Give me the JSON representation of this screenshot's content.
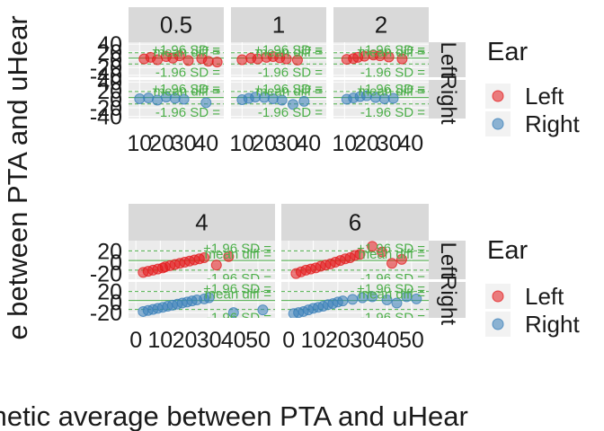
{
  "chart_data": [
    {
      "type": "scatter",
      "title": "",
      "facet_rows": [
        "Left",
        "Right"
      ],
      "facet_row_labels": [
        "Left",
        "Right"
      ],
      "facet_cols": [
        "0.5",
        "1",
        "2"
      ],
      "xlim": [
        5,
        48
      ],
      "xticks": [
        10,
        20,
        30,
        40
      ],
      "xtick_labels": [
        "10",
        "20",
        "30",
        "40"
      ],
      "ylim": [
        -45,
        45
      ],
      "yticks": [
        40,
        20,
        0,
        -20,
        -40
      ],
      "ytick_labels": [
        "40",
        "20",
        "0",
        "-20",
        "-40"
      ],
      "ref_lines": {
        "mean": 4,
        "upper": 18,
        "lower": -11
      },
      "annotations": {
        "mean": "mean diff =",
        "upper": "+1.96 SD =",
        "lower": "-1.96 SD ="
      },
      "series": [
        {
          "name": "Left",
          "panels": [
            [
              [
                12,
                2
              ],
              [
                15,
                6
              ],
              [
                18,
                0
              ],
              [
                22,
                8
              ],
              [
                25,
                4
              ],
              [
                28,
                10
              ],
              [
                32,
                -2
              ],
              [
                38,
                3
              ],
              [
                41,
                -4
              ],
              [
                45,
                -6
              ]
            ],
            [
              [
                10,
                0
              ],
              [
                14,
                4
              ],
              [
                17,
                2
              ],
              [
                21,
                6
              ],
              [
                24,
                8
              ],
              [
                27,
                5
              ],
              [
                30,
                2
              ],
              [
                35,
                -1
              ]
            ],
            [
              [
                11,
                1
              ],
              [
                14,
                3
              ],
              [
                16,
                6
              ],
              [
                19,
                9
              ],
              [
                23,
                12
              ],
              [
                26,
                10
              ],
              [
                30,
                7
              ],
              [
                36,
                2
              ]
            ]
          ]
        },
        {
          "name": "Right",
          "panels": [
            [
              [
                10,
                1
              ],
              [
                14,
                3
              ],
              [
                18,
                -2
              ],
              [
                22,
                5
              ],
              [
                26,
                2
              ],
              [
                30,
                0
              ],
              [
                40,
                -8
              ]
            ],
            [
              [
                10,
                -1
              ],
              [
                13,
                2
              ],
              [
                16,
                5
              ],
              [
                20,
                4
              ],
              [
                24,
                1
              ],
              [
                28,
                -2
              ],
              [
                33,
                -12
              ],
              [
                38,
                -5
              ]
            ],
            [
              [
                11,
                0
              ],
              [
                14,
                3
              ],
              [
                17,
                6
              ],
              [
                20,
                8
              ],
              [
                24,
                4
              ],
              [
                28,
                1
              ],
              [
                32,
                2
              ]
            ]
          ]
        }
      ]
    },
    {
      "type": "scatter",
      "title": "",
      "facet_rows": [
        "Left",
        "Right"
      ],
      "facet_row_labels": [
        "Left",
        "Right"
      ],
      "facet_cols": [
        "4",
        "6"
      ],
      "xlim": [
        -3,
        57
      ],
      "xticks": [
        0,
        10,
        20,
        30,
        40,
        50
      ],
      "xtick_labels": [
        "0",
        "10",
        "20",
        "30",
        "40",
        "50"
      ],
      "ylim": [
        -30,
        38
      ],
      "yticks": [
        20,
        0,
        -20
      ],
      "ytick_labels": [
        "20",
        "0",
        "-20"
      ],
      "ref_lines": {
        "mean": 3,
        "upper": 20,
        "lower": -14
      },
      "annotations": {
        "mean": "mean diff =",
        "upper": "+1.96 SD =",
        "lower": "-1.96 SD ="
      },
      "series": [
        {
          "name": "Left",
          "panels": [
            [
              [
                3,
                -18
              ],
              [
                5,
                -16
              ],
              [
                7,
                -14
              ],
              [
                9,
                -12
              ],
              [
                11,
                -10
              ],
              [
                12,
                -8
              ],
              [
                14,
                -6
              ],
              [
                16,
                -4
              ],
              [
                18,
                -2
              ],
              [
                20,
                0
              ],
              [
                22,
                2
              ],
              [
                24,
                4
              ],
              [
                26,
                6
              ],
              [
                28,
                8
              ],
              [
                33,
                -5
              ],
              [
                38,
                10
              ]
            ],
            [
              [
                3,
                -20
              ],
              [
                5,
                -17
              ],
              [
                7,
                -14
              ],
              [
                9,
                -12
              ],
              [
                11,
                -10
              ],
              [
                13,
                -7
              ],
              [
                15,
                -5
              ],
              [
                17,
                -3
              ],
              [
                19,
                0
              ],
              [
                21,
                3
              ],
              [
                23,
                6
              ],
              [
                25,
                8
              ],
              [
                27,
                12
              ],
              [
                29,
                14
              ],
              [
                34,
                28
              ],
              [
                38,
                18
              ],
              [
                42,
                -2
              ],
              [
                46,
                5
              ]
            ]
          ]
        },
        {
          "name": "Right",
          "panels": [
            [
              [
                3,
                -18
              ],
              [
                5,
                -16
              ],
              [
                7,
                -14
              ],
              [
                9,
                -12
              ],
              [
                11,
                -10
              ],
              [
                13,
                -8
              ],
              [
                15,
                -6
              ],
              [
                17,
                -4
              ],
              [
                19,
                -2
              ],
              [
                21,
                0
              ],
              [
                23,
                2
              ],
              [
                25,
                4
              ],
              [
                28,
                6
              ],
              [
                30,
                8
              ],
              [
                40,
                -20
              ],
              [
                52,
                -15
              ]
            ],
            [
              [
                2,
                -22
              ],
              [
                4,
                -20
              ],
              [
                6,
                -18
              ],
              [
                8,
                -15
              ],
              [
                10,
                -12
              ],
              [
                12,
                -10
              ],
              [
                14,
                -8
              ],
              [
                16,
                -5
              ],
              [
                18,
                -3
              ],
              [
                20,
                0
              ],
              [
                22,
                2
              ],
              [
                26,
                5
              ],
              [
                30,
                8
              ],
              [
                34,
                10
              ],
              [
                40,
                4
              ],
              [
                44,
                -2
              ],
              [
                48,
                10
              ],
              [
                52,
                6
              ]
            ]
          ]
        }
      ]
    }
  ],
  "legends": [
    {
      "title": "Ear",
      "items": [
        {
          "label": "Left",
          "color": "#E41A1C"
        },
        {
          "label": "Right",
          "color": "#377EB8"
        }
      ]
    },
    {
      "title": "Ear",
      "items": [
        {
          "label": "Left",
          "color": "#E41A1C"
        },
        {
          "label": "Right",
          "color": "#377EB8"
        }
      ]
    }
  ],
  "axis_text": {
    "x": "metic average between PTA and uHear",
    "y": "e between PTA and uHear"
  },
  "colors": {
    "left": "#E41A1C",
    "right": "#377EB8",
    "ref_line": "#4DAF4A",
    "panel_bg": "#EBEBEB",
    "strip_bg": "#D9D9D9",
    "grid": "#FFFFFF",
    "text": "#1A1A1A"
  }
}
